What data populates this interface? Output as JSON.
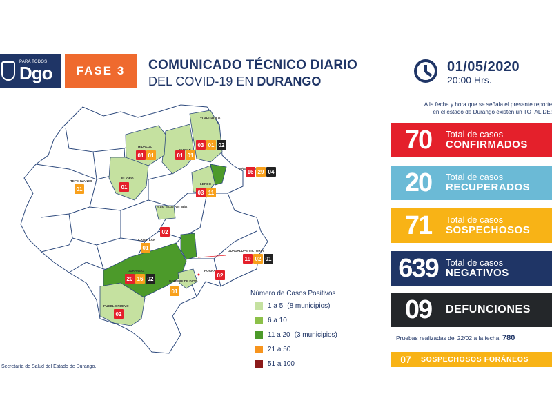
{
  "header": {
    "logo_small": "PARA TODOS",
    "logo_big": "Dgo",
    "fase": "FASE 3",
    "title_line1": "COMUNICADO TÉCNICO DIARIO",
    "title_line2_pre": "DEL COVID-19 EN ",
    "title_line2_bold": "DURANGO",
    "date": "01/05/2020",
    "time": "20:00 Hrs."
  },
  "summary": {
    "intro_line1": "A la fecha y hora que se señala el presente reporte",
    "intro_line2": "en el estado de Durango existen un TOTAL DE:",
    "stats": [
      {
        "value": "70",
        "label_top": "Total de casos",
        "label_bottom": "CONFIRMADOS",
        "color": "#e4202b"
      },
      {
        "value": "20",
        "label_top": "Total de casos",
        "label_bottom": "RECUPERADOS",
        "color": "#6bbad6"
      },
      {
        "value": "71",
        "label_top": "Total de casos",
        "label_bottom": "SOSPECHOSOS",
        "color": "#f8b316"
      },
      {
        "value": "639",
        "label_top": "Total de casos",
        "label_bottom": "NEGATIVOS",
        "color": "#1f3566"
      },
      {
        "value": "09",
        "label_top": "",
        "label_bottom": "DEFUNCIONES",
        "color": "#24272a"
      }
    ],
    "tests_text": "Pruebas realizadas del 22/02 a la fecha: ",
    "tests_value": "780",
    "foraneos_value": "07",
    "foraneos_label": "SOSPECHOSOS FORÁNEOS"
  },
  "map": {
    "municipalities": [
      {
        "name": "TLAHUALILO",
        "badges": [
          {
            "v": "03",
            "c": "#e4202b"
          },
          {
            "v": "01",
            "c": "#f8a01c"
          },
          {
            "v": "02",
            "c": "#222222"
          }
        ]
      },
      {
        "name": "HIDALGO",
        "badges": [
          {
            "v": "01",
            "c": "#e4202b"
          },
          {
            "v": "01",
            "c": "#f8a01c"
          }
        ]
      },
      {
        "name": "MAPIMÍ",
        "badges": [
          {
            "v": "01",
            "c": "#e4202b"
          },
          {
            "v": "01",
            "c": "#f8a01c"
          }
        ]
      },
      {
        "name": "GÓMEZ PALACIO",
        "badges": [
          {
            "v": "16",
            "c": "#e4202b"
          },
          {
            "v": "29",
            "c": "#f8a01c"
          },
          {
            "v": "04",
            "c": "#222222"
          }
        ]
      },
      {
        "name": "TEPEHUANES",
        "badges": [
          {
            "v": "01",
            "c": "#f8a01c"
          }
        ]
      },
      {
        "name": "EL ORO",
        "badges": [
          {
            "v": "01",
            "c": "#e4202b"
          }
        ]
      },
      {
        "name": "LERDO",
        "badges": [
          {
            "v": "03",
            "c": "#e4202b"
          },
          {
            "v": "11",
            "c": "#f8a01c"
          }
        ]
      },
      {
        "name": "SAN JUAN DEL RÍO",
        "badges": [
          {
            "v": "02",
            "c": "#e4202b"
          }
        ]
      },
      {
        "name": "CANATLÁN",
        "badges": [
          {
            "v": "01",
            "c": "#f8a01c"
          }
        ]
      },
      {
        "name": "GUADALUPE VICTORIA",
        "badges": [
          {
            "v": "19",
            "c": "#e4202b"
          },
          {
            "v": "02",
            "c": "#f8a01c"
          },
          {
            "v": "01",
            "c": "#222222"
          }
        ]
      },
      {
        "name": "DURANGO",
        "badges": [
          {
            "v": "20",
            "c": "#e4202b"
          },
          {
            "v": "16",
            "c": "#f8a01c"
          },
          {
            "v": "02",
            "c": "#222222"
          }
        ]
      },
      {
        "name": "POANAS",
        "badges": [
          {
            "v": "02",
            "c": "#e4202b"
          }
        ]
      },
      {
        "name": "NOMBRE DE DIOS",
        "badges": [
          {
            "v": "01",
            "c": "#f8a01c"
          }
        ]
      },
      {
        "name": "PUEBLO NUEVO",
        "badges": [
          {
            "v": "02",
            "c": "#e4202b"
          }
        ]
      }
    ]
  },
  "legend": {
    "title": "Número de Casos Positivos",
    "items": [
      {
        "label": "1 a 5",
        "note": "(8 municipios)",
        "color": "#c5e1a0"
      },
      {
        "label": "6 a 10",
        "note": "",
        "color": "#8cc049"
      },
      {
        "label": "11 a 20",
        "note": "(3 municipios)",
        "color": "#4c9a2a"
      },
      {
        "label": "21 a 50",
        "note": "",
        "color": "#f7941d"
      },
      {
        "label": "51 a 100",
        "note": "",
        "color": "#8b1a1a"
      }
    ]
  },
  "source": "Secretaría de Salud del Estado de Durango."
}
